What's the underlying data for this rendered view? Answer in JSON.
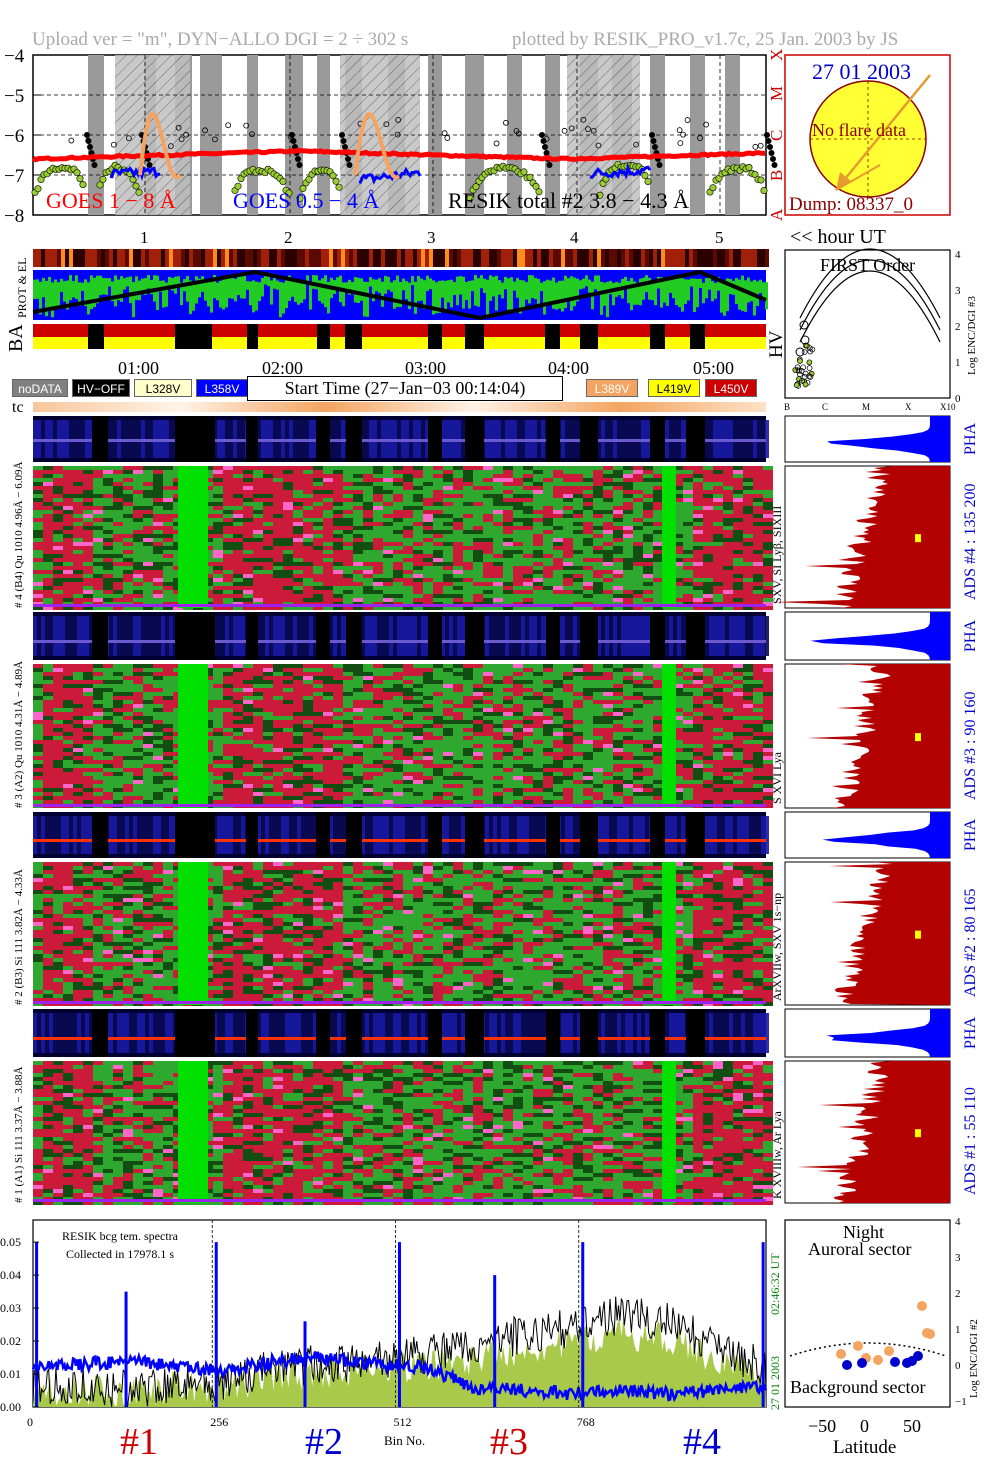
{
  "header": {
    "left": "Upload ver = \"m\", DYN−ALLO DGI =   2 ÷ 302 s",
    "right": "plotted by RESIK_PRO_v1.7c, 25 Jan. 2003 by JS"
  },
  "goes_panel": {
    "y_ticks": [
      "−4",
      "−5",
      "−6",
      "−7",
      "−8"
    ],
    "class_letters": [
      "X",
      "M",
      "C",
      "B",
      "A"
    ],
    "legend_goes_long": "GOES 1 − 8 Å",
    "legend_goes_short": "GOES 0.5 − 4 Å",
    "legend_resik": "RESIK total #2  3.8 − 4.3 Å",
    "colors": {
      "long": "#ff0000",
      "short": "#0000ff",
      "resik": "#000000",
      "accent": "#f4a460"
    }
  },
  "sun_panel": {
    "date": "27 01 2003",
    "message": "No flare data",
    "dump": "Dump: 08337_0",
    "colors": {
      "disk": "#ffff33",
      "text_date": "#0000cc",
      "text_msg": "#8b0000"
    }
  },
  "orbit_axis": {
    "labels": [
      "1",
      "2",
      "3",
      "4",
      "5"
    ],
    "hour_label": "<< hour UT"
  },
  "strips": {
    "prot_el": "PROT & EL",
    "ba": "BA",
    "hv": "HV"
  },
  "time_axis": {
    "labels": [
      "01:00",
      "02:00",
      "03:00",
      "04:00",
      "05:00"
    ]
  },
  "legend": {
    "left": [
      {
        "label": "noDATA",
        "color": "#808080",
        "text": "#ffffff"
      },
      {
        "label": "HV−OFF",
        "color": "#000000",
        "text": "#ffffff"
      },
      {
        "label": "L328V",
        "color": "#ffffcc",
        "text": "#000000"
      },
      {
        "label": "L358V",
        "color": "#0000ff",
        "text": "#ffffff"
      }
    ],
    "start_time": "Start Time (27−Jan−03 00:14:04)",
    "right": [
      {
        "label": "L389V",
        "color": "#f4a460",
        "text": "#ffffff"
      },
      {
        "label": "L419V",
        "color": "#ffff00",
        "text": "#000000"
      },
      {
        "label": "L450V",
        "color": "#cc0000",
        "text": "#ffffff"
      }
    ]
  },
  "tc_label": "tc",
  "first_order": {
    "title": "FIRST Order",
    "ylabel": "Log ENC/DGI #3",
    "y_ticks": [
      "4",
      "3",
      "2",
      "1",
      "0"
    ],
    "x_ticks": [
      "B",
      "C",
      "M",
      "X",
      "X10"
    ]
  },
  "channels": [
    {
      "left_label": "# 4 (B4) Qu 1010  4.96Å − 6.09Å",
      "line_label": "SXV, SI Lyβ, SIXIII",
      "ads_label": "ADS #4 :  135 200",
      "pha": "PHA"
    },
    {
      "left_label": "# 3 (A2) Qu 1010  4.31Å − 4.89Å",
      "line_label": "S XVI Lya",
      "ads_label": "ADS #3 :   90 160",
      "pha": "PHA"
    },
    {
      "left_label": "# 2 (B3) Si 111  3.82Å − 4.33Å",
      "line_label": "ArXVIIw, SXV 1s−np",
      "ads_label": "ADS #2 :   80 165",
      "pha": "PHA"
    },
    {
      "left_label": "# 1 (A1) Si 111  3.37Å − 3.88Å",
      "line_label": "K XVIIIw, Ar Lya",
      "ads_label": "ADS #1 :   55 110",
      "pha": "PHA"
    }
  ],
  "bottom_spectrum": {
    "note1": "RESIK bcg tem. spectra",
    "note2": "Collected in 17978.1 s",
    "x_ticks": [
      "0",
      "256",
      "512",
      "768"
    ],
    "xlabel": "Bin No.",
    "y_ticks": [
      "0.05",
      "0.04",
      "0.03",
      "0.02",
      "0.01",
      "0.00"
    ],
    "time_label": "02:46:32 UT",
    "date_label": "27 01 2003",
    "section_labels": [
      "#1",
      "#2",
      "#3",
      "#4"
    ],
    "section_colors": [
      "#cc0000",
      "#0000cc",
      "#cc0000",
      "#0000cc"
    ]
  },
  "latitude_panel": {
    "title1": "Night",
    "title2": "Auroral sector",
    "bottom": "Background sector",
    "ylabel": "Log ENC/DGI #2",
    "y_ticks": [
      "4",
      "3",
      "2",
      "1",
      "0",
      "−1"
    ],
    "x_ticks": [
      "−50",
      "0",
      "50"
    ],
    "xlabel": "Latitude"
  },
  "chart_data": [
    {
      "type": "line",
      "title": "",
      "ylabel": "",
      "ylim": [
        -8,
        -4
      ],
      "series": [
        {
          "name": "GOES 1 − 8 Å",
          "values": [
            -6.6,
            -6.55,
            -6.5,
            -6.45,
            -6.4,
            -6.45,
            -6.5,
            -6.55,
            -6.6,
            -6.55,
            -6.5,
            -6.45
          ]
        },
        {
          "name": "GOES 0.5 − 4 Å",
          "values": [
            -7.2,
            -7.0,
            -6.9,
            -6.8,
            -7.0,
            -7.1,
            -6.9,
            -6.8,
            -7.0,
            -6.9,
            -6.8,
            -6.9
          ]
        },
        {
          "name": "RESIK total #2  3.8 − 4.3 Å",
          "values": [
            -6.4,
            -6.2,
            -6.6,
            -6.3,
            -6.5,
            -6.2,
            -6.6,
            -6.3,
            -6.5,
            -6.2,
            -6.4,
            -6.3
          ]
        }
      ]
    },
    {
      "type": "line",
      "title": "RESIK bcg tem. spectra",
      "xlabel": "Bin No.",
      "xlim": [
        0,
        1024
      ],
      "ylim": [
        0,
        0.055
      ],
      "series": [
        {
          "name": "blue",
          "values": [
            0.012,
            0.013,
            0.014,
            0.012,
            0.011,
            0.014,
            0.015,
            0.013,
            0.012,
            0.006,
            0.005,
            0.004,
            0.005,
            0.004,
            0.005,
            0.006
          ]
        },
        {
          "name": "black",
          "values": [
            0.006,
            0.007,
            0.005,
            0.008,
            0.007,
            0.012,
            0.013,
            0.014,
            0.016,
            0.018,
            0.022,
            0.024,
            0.028,
            0.026,
            0.018,
            0.012
          ]
        }
      ]
    }
  ]
}
